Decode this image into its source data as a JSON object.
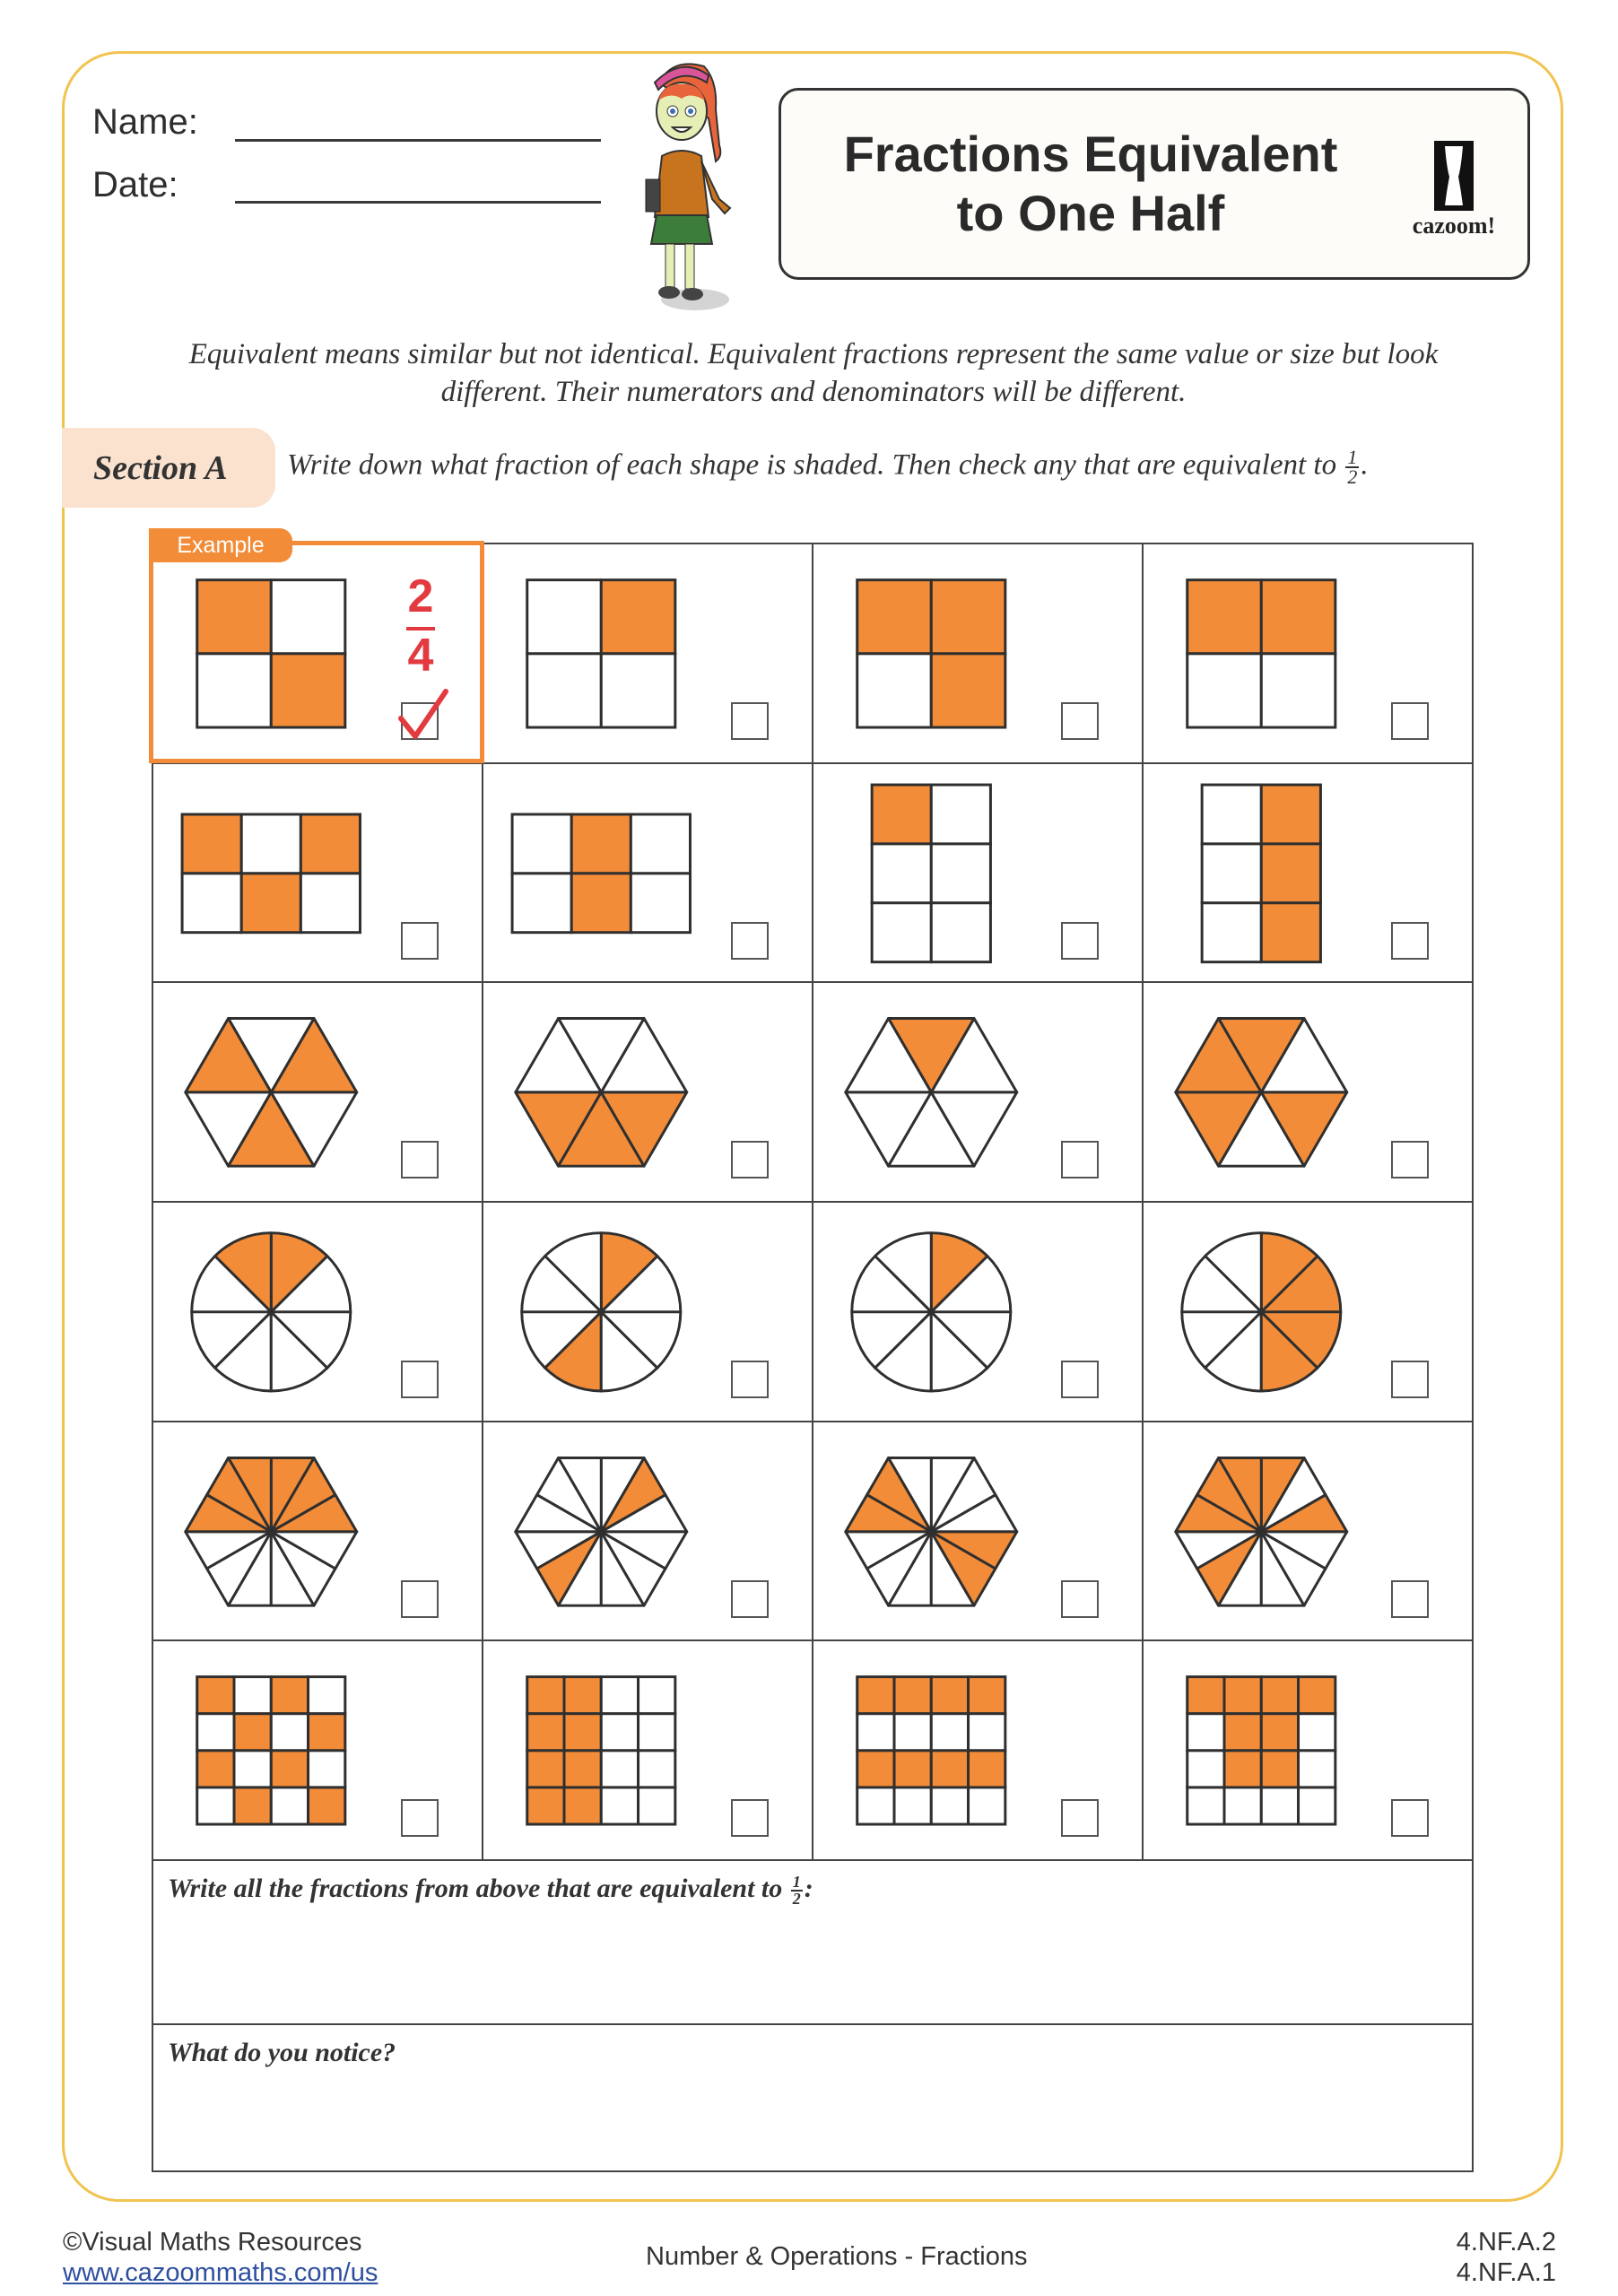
{
  "header": {
    "name_label": "Name:",
    "date_label": "Date:",
    "title_line1": "Fractions Equivalent",
    "title_line2": "to One Half",
    "logo_text": "cazoom!"
  },
  "intro": "Equivalent means similar but not identical. Equivalent fractions represent the same value or size but look different. Their numerators and denominators will be different.",
  "section": {
    "label": "Section A",
    "instruction": "Write down what fraction of each shape is shaded. Then check any that are equivalent to",
    "target_numerator": "1",
    "target_denominator": "2",
    "instruction_end": "."
  },
  "example": {
    "tag": "Example",
    "answer_numerator": "2",
    "answer_denominator": "4",
    "checked": true
  },
  "colors": {
    "shade": "#f28c38",
    "frame": "#f1c34f",
    "answer": "#e23a3f",
    "section_pill": "#fbe2cf"
  },
  "shapes": [
    {
      "type": "grid",
      "cols": 2,
      "rows": 2,
      "shaded": [
        [
          0,
          0
        ],
        [
          1,
          1
        ]
      ]
    },
    {
      "type": "grid",
      "cols": 2,
      "rows": 2,
      "shaded": [
        [
          0,
          1
        ]
      ]
    },
    {
      "type": "grid",
      "cols": 2,
      "rows": 2,
      "shaded": [
        [
          0,
          0
        ],
        [
          0,
          1
        ],
        [
          1,
          1
        ]
      ]
    },
    {
      "type": "grid",
      "cols": 2,
      "rows": 2,
      "shaded": [
        [
          0,
          0
        ],
        [
          0,
          1
        ]
      ]
    },
    {
      "type": "grid",
      "cols": 3,
      "rows": 2,
      "shaded": [
        [
          0,
          0
        ],
        [
          0,
          2
        ],
        [
          1,
          1
        ]
      ]
    },
    {
      "type": "grid",
      "cols": 3,
      "rows": 2,
      "shaded": [
        [
          0,
          1
        ],
        [
          1,
          1
        ]
      ]
    },
    {
      "type": "grid",
      "cols": 2,
      "rows": 3,
      "shaded": [
        [
          0,
          0
        ]
      ]
    },
    {
      "type": "grid",
      "cols": 2,
      "rows": 3,
      "shaded": [
        [
          0,
          1
        ],
        [
          1,
          1
        ],
        [
          2,
          1
        ]
      ]
    },
    {
      "type": "hexagon",
      "divisions": 6,
      "shaded": [
        0,
        2,
        4
      ]
    },
    {
      "type": "hexagon",
      "divisions": 6,
      "shaded": [
        3,
        4,
        5
      ]
    },
    {
      "type": "hexagon",
      "divisions": 6,
      "shaded": [
        1
      ]
    },
    {
      "type": "hexagon",
      "divisions": 6,
      "shaded": [
        1,
        2,
        3,
        5
      ]
    },
    {
      "type": "circle",
      "divisions": 8,
      "shaded": [
        1,
        2
      ]
    },
    {
      "type": "circle",
      "divisions": 8,
      "shaded": [
        1,
        5
      ]
    },
    {
      "type": "circle",
      "divisions": 8,
      "shaded": [
        1
      ]
    },
    {
      "type": "circle",
      "divisions": 8,
      "shaded": [
        0,
        1,
        6,
        7
      ]
    },
    {
      "type": "hexagon",
      "divisions": 12,
      "shaded": [
        0,
        1,
        2,
        3,
        4,
        5
      ]
    },
    {
      "type": "hexagon",
      "divisions": 12,
      "shaded": [
        1,
        7
      ]
    },
    {
      "type": "hexagon",
      "divisions": 12,
      "shaded": [
        4,
        5,
        10,
        11
      ]
    },
    {
      "type": "hexagon",
      "divisions": 12,
      "shaded": [
        0,
        2,
        3,
        4,
        5,
        7
      ]
    },
    {
      "type": "grid",
      "cols": 4,
      "rows": 4,
      "shaded": [
        [
          0,
          0
        ],
        [
          0,
          2
        ],
        [
          1,
          1
        ],
        [
          1,
          3
        ],
        [
          2,
          0
        ],
        [
          2,
          2
        ],
        [
          3,
          1
        ],
        [
          3,
          3
        ]
      ]
    },
    {
      "type": "grid",
      "cols": 4,
      "rows": 4,
      "shaded": [
        [
          0,
          0
        ],
        [
          0,
          1
        ],
        [
          1,
          0
        ],
        [
          1,
          1
        ],
        [
          2,
          0
        ],
        [
          2,
          1
        ],
        [
          3,
          0
        ],
        [
          3,
          1
        ]
      ]
    },
    {
      "type": "grid",
      "cols": 4,
      "rows": 4,
      "shaded": [
        [
          0,
          0
        ],
        [
          0,
          1
        ],
        [
          0,
          2
        ],
        [
          0,
          3
        ],
        [
          2,
          0
        ],
        [
          2,
          1
        ],
        [
          2,
          2
        ],
        [
          2,
          3
        ]
      ]
    },
    {
      "type": "grid",
      "cols": 4,
      "rows": 4,
      "shaded": [
        [
          0,
          0
        ],
        [
          0,
          1
        ],
        [
          0,
          2
        ],
        [
          0,
          3
        ],
        [
          1,
          1
        ],
        [
          1,
          2
        ],
        [
          2,
          1
        ],
        [
          2,
          2
        ]
      ]
    }
  ],
  "answers": {
    "equivalent_prompt": "Write all the fractions from above that are equivalent to",
    "equivalent_numerator": "1",
    "equivalent_denominator": "2",
    "equivalent_end": ":",
    "notice_prompt": "What do you notice?"
  },
  "footer": {
    "copyright": "©Visual Maths Resources",
    "url": "www.cazoommaths.com/us",
    "topic": "Number & Operations - Fractions",
    "standard1": "4.NF.A.2",
    "standard2": "4.NF.A.1"
  }
}
